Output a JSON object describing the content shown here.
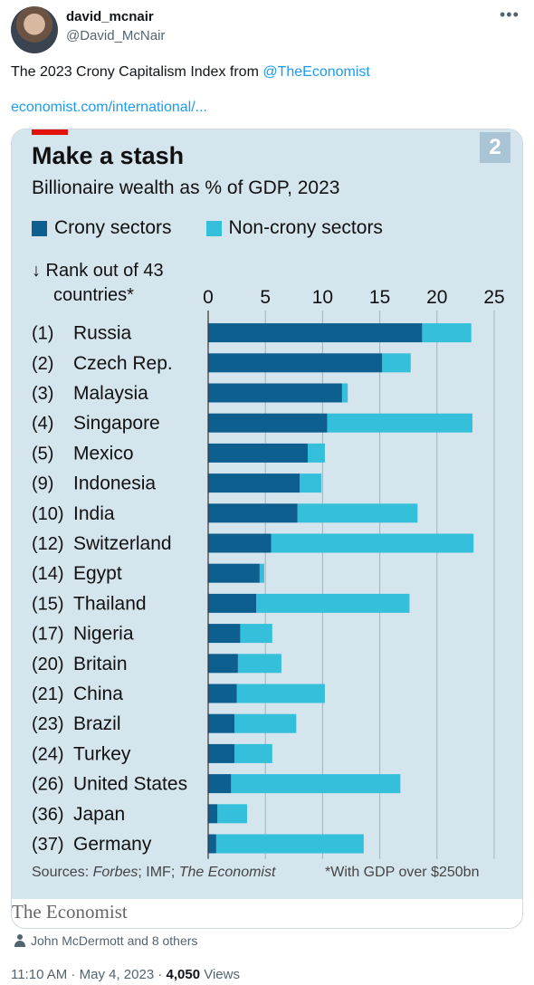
{
  "author": {
    "display_name": "david_mcnair",
    "handle": "@David_McNair"
  },
  "tweet": {
    "text": "The 2023 Crony Capitalism Index from ",
    "mention": "@TheEconomist",
    "link": "economist.com/international/..."
  },
  "chart_header": {
    "number_badge": "2",
    "rank_heading_line1": "↓ Rank out of 43",
    "rank_heading_line2": "countries*"
  },
  "chart_data": {
    "type": "bar",
    "stacked": true,
    "orientation": "horizontal",
    "title": "Make a stash",
    "subtitle": "Billionaire wealth as % of GDP, 2023",
    "xlim": [
      0,
      25
    ],
    "x_ticks": [
      "0",
      "5",
      "10",
      "15",
      "20",
      "25"
    ],
    "grid": true,
    "legend_position": "top",
    "colors": {
      "crony": "#0d5f8f",
      "noncrony": "#34c0da"
    },
    "series": [
      {
        "name": "Crony sectors",
        "key": "crony"
      },
      {
        "name": "Non-crony sectors",
        "key": "noncrony"
      }
    ],
    "rows": [
      {
        "rank": "(1)",
        "country": "Russia",
        "crony": 18.7,
        "total": 23.0
      },
      {
        "rank": "(2)",
        "country": "Czech Rep.",
        "crony": 15.2,
        "total": 17.7
      },
      {
        "rank": "(3)",
        "country": "Malaysia",
        "crony": 11.7,
        "total": 12.2
      },
      {
        "rank": "(4)",
        "country": "Singapore",
        "crony": 10.4,
        "total": 23.1
      },
      {
        "rank": "(5)",
        "country": "Mexico",
        "crony": 8.7,
        "total": 10.2
      },
      {
        "rank": "(9)",
        "country": "Indonesia",
        "crony": 8.0,
        "total": 9.9
      },
      {
        "rank": "(10)",
        "country": "India",
        "crony": 7.8,
        "total": 18.3
      },
      {
        "rank": "(12)",
        "country": "Switzerland",
        "crony": 5.5,
        "total": 23.2
      },
      {
        "rank": "(14)",
        "country": "Egypt",
        "crony": 4.5,
        "total": 4.9
      },
      {
        "rank": "(15)",
        "country": "Thailand",
        "crony": 4.2,
        "total": 17.6
      },
      {
        "rank": "(17)",
        "country": "Nigeria",
        "crony": 2.8,
        "total": 5.6
      },
      {
        "rank": "(20)",
        "country": "Britain",
        "crony": 2.6,
        "total": 6.4
      },
      {
        "rank": "(21)",
        "country": "China",
        "crony": 2.5,
        "total": 10.2
      },
      {
        "rank": "(23)",
        "country": "Brazil",
        "crony": 2.3,
        "total": 7.7
      },
      {
        "rank": "(24)",
        "country": "Turkey",
        "crony": 2.3,
        "total": 5.6
      },
      {
        "rank": "(26)",
        "country": "United States",
        "crony": 2.0,
        "total": 16.8
      },
      {
        "rank": "(36)",
        "country": "Japan",
        "crony": 0.8,
        "total": 3.4
      },
      {
        "rank": "(37)",
        "country": "Germany",
        "crony": 0.7,
        "total": 13.6
      }
    ],
    "sources_label": "Sources: ",
    "sources_forbes": "Forbes",
    "sources_sep": "; IMF; ",
    "sources_economist": "The Economist",
    "footnote": "*With GDP over $250bn"
  },
  "publisher": "The Economist",
  "likes_text": "John McDermott and 8 others",
  "meta": {
    "time": "11:10 AM",
    "date": "May 4, 2023",
    "views_count": "4,050",
    "views_label": "Views"
  }
}
